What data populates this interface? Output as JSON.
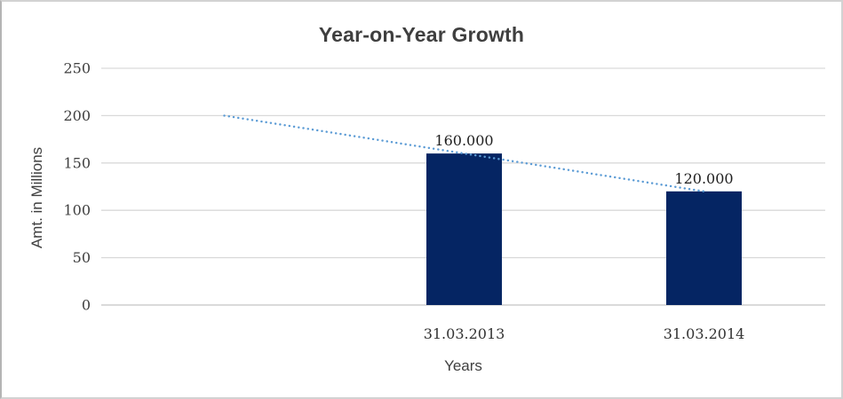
{
  "chart": {
    "colors": {
      "bar": "#052563",
      "trendline": "#5b9bd5",
      "gridline": "#d9d9d9",
      "axis_line": "#c3c3c3",
      "title_text": "#3f3f3f",
      "frame_border": "#d2d2d2",
      "background": "#ffffff"
    }
  },
  "chart_data": {
    "type": "bar",
    "title": "Year-on-Year Growth",
    "xlabel": "Years",
    "ylabel": "Amt. in Millions",
    "categories": [
      "31.03.2013",
      "31.03.2014"
    ],
    "values": [
      160,
      120
    ],
    "data_labels": [
      "160.000",
      "120.000"
    ],
    "ylim": [
      0,
      250
    ],
    "yticks": [
      0,
      50,
      100,
      150,
      200,
      250
    ],
    "grid": true,
    "legend": false,
    "trendline": {
      "style": "dotted",
      "start": {
        "offset_periods": -1,
        "value": 200
      },
      "end": {
        "category_index": 1,
        "value": 120
      }
    }
  }
}
